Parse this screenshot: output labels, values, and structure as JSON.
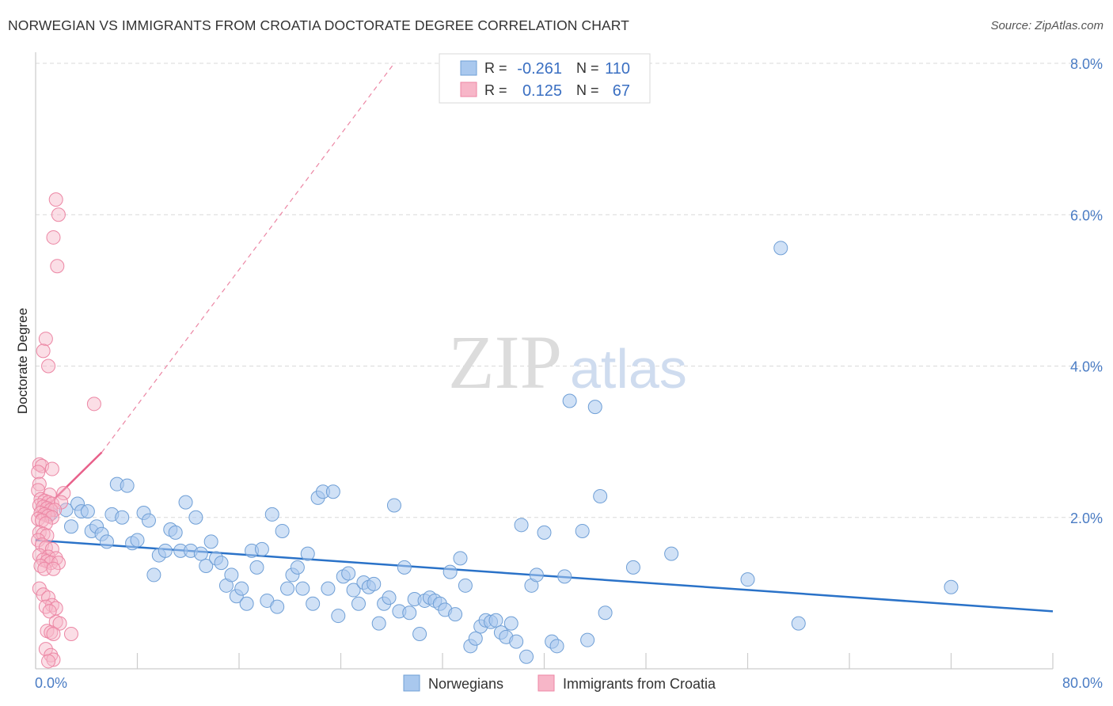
{
  "title": "NORWEGIAN VS IMMIGRANTS FROM CROATIA DOCTORATE DEGREE CORRELATION CHART",
  "source": "Source: ZipAtlas.com",
  "watermark": {
    "zip": "ZIP",
    "atlas": "atlas"
  },
  "colors": {
    "blue_fill": "#a9c8ee",
    "blue_stroke": "#6f9fd6",
    "blue_line": "#2a72c8",
    "pink_fill": "#f7b6c8",
    "pink_stroke": "#ec86a4",
    "pink_line": "#e8608a",
    "tick_label": "#4a7cc4",
    "grid": "#d9d9d9"
  },
  "stats_box": {
    "rows": [
      {
        "r_label": "R =",
        "r_value": "-0.261",
        "n_label": "N =",
        "n_value": "110",
        "series": "blue"
      },
      {
        "r_label": "R =",
        "r_value": "0.125",
        "n_label": "N =",
        "n_value": "67",
        "series": "pink"
      }
    ]
  },
  "chart_data": {
    "type": "scatter",
    "title": "NORWEGIAN VS IMMIGRANTS FROM CROATIA DOCTORATE DEGREE CORRELATION CHART",
    "xlabel": "",
    "ylabel": "Doctorate Degree",
    "xlim": [
      0,
      80
    ],
    "ylim": [
      0,
      8
    ],
    "x_tick_labels": [
      "0.0%",
      "80.0%"
    ],
    "y_ticks": [
      2,
      4,
      6,
      8
    ],
    "y_tick_labels": [
      "2.0%",
      "4.0%",
      "6.0%",
      "8.0%"
    ],
    "grid": true,
    "legend_position": "bottom-center",
    "series": [
      {
        "name": "Norwegians",
        "color": "#a9c8ee",
        "r": -0.261,
        "n": 110,
        "trend": {
          "x": [
            0,
            80
          ],
          "y": [
            1.7,
            0.76
          ]
        },
        "points": [
          [
            1.2,
            2.05
          ],
          [
            2.4,
            2.1
          ],
          [
            2.8,
            1.88
          ],
          [
            3.3,
            2.18
          ],
          [
            3.6,
            2.08
          ],
          [
            4.1,
            2.08
          ],
          [
            4.4,
            1.82
          ],
          [
            4.8,
            1.88
          ],
          [
            5.2,
            1.78
          ],
          [
            5.6,
            1.68
          ],
          [
            6.0,
            2.04
          ],
          [
            6.4,
            2.44
          ],
          [
            6.8,
            2.0
          ],
          [
            7.2,
            2.42
          ],
          [
            7.6,
            1.66
          ],
          [
            8.0,
            1.7
          ],
          [
            8.5,
            2.06
          ],
          [
            8.9,
            1.96
          ],
          [
            9.3,
            1.24
          ],
          [
            9.7,
            1.5
          ],
          [
            10.2,
            1.56
          ],
          [
            10.6,
            1.84
          ],
          [
            11.0,
            1.8
          ],
          [
            11.4,
            1.56
          ],
          [
            11.8,
            2.2
          ],
          [
            12.2,
            1.56
          ],
          [
            12.6,
            2.0
          ],
          [
            13.0,
            1.52
          ],
          [
            13.4,
            1.36
          ],
          [
            13.8,
            1.68
          ],
          [
            14.2,
            1.46
          ],
          [
            14.6,
            1.4
          ],
          [
            15.0,
            1.1
          ],
          [
            15.4,
            1.24
          ],
          [
            15.8,
            0.96
          ],
          [
            16.2,
            1.06
          ],
          [
            16.6,
            0.86
          ],
          [
            17.0,
            1.56
          ],
          [
            17.4,
            1.34
          ],
          [
            17.8,
            1.58
          ],
          [
            18.2,
            0.9
          ],
          [
            18.6,
            2.04
          ],
          [
            19.0,
            0.82
          ],
          [
            19.4,
            1.82
          ],
          [
            19.8,
            1.06
          ],
          [
            20.2,
            1.24
          ],
          [
            20.6,
            1.34
          ],
          [
            21.0,
            1.06
          ],
          [
            21.4,
            1.52
          ],
          [
            21.8,
            0.86
          ],
          [
            22.2,
            2.26
          ],
          [
            22.6,
            2.34
          ],
          [
            23.0,
            1.06
          ],
          [
            23.4,
            2.34
          ],
          [
            23.8,
            0.7
          ],
          [
            24.2,
            1.22
          ],
          [
            24.6,
            1.26
          ],
          [
            25.0,
            1.04
          ],
          [
            25.4,
            0.86
          ],
          [
            25.8,
            1.14
          ],
          [
            26.2,
            1.08
          ],
          [
            26.6,
            1.12
          ],
          [
            27.0,
            0.6
          ],
          [
            27.4,
            0.86
          ],
          [
            27.8,
            0.94
          ],
          [
            28.2,
            2.16
          ],
          [
            28.6,
            0.76
          ],
          [
            29.0,
            1.34
          ],
          [
            29.4,
            0.74
          ],
          [
            29.8,
            0.92
          ],
          [
            30.2,
            0.46
          ],
          [
            30.6,
            0.9
          ],
          [
            31.0,
            0.94
          ],
          [
            31.4,
            0.9
          ],
          [
            31.8,
            0.86
          ],
          [
            32.2,
            0.78
          ],
          [
            32.6,
            1.28
          ],
          [
            33.0,
            0.72
          ],
          [
            33.4,
            1.46
          ],
          [
            33.8,
            1.1
          ],
          [
            34.2,
            0.3
          ],
          [
            34.6,
            0.4
          ],
          [
            35.0,
            0.56
          ],
          [
            35.4,
            0.64
          ],
          [
            35.8,
            0.62
          ],
          [
            36.2,
            0.64
          ],
          [
            36.6,
            0.48
          ],
          [
            37.0,
            0.42
          ],
          [
            37.4,
            0.6
          ],
          [
            37.8,
            0.36
          ],
          [
            38.2,
            1.9
          ],
          [
            38.6,
            0.16
          ],
          [
            39.0,
            1.1
          ],
          [
            39.4,
            1.24
          ],
          [
            40.0,
            1.8
          ],
          [
            40.6,
            0.36
          ],
          [
            41.0,
            0.3
          ],
          [
            41.6,
            1.22
          ],
          [
            42.0,
            3.54
          ],
          [
            43.0,
            1.82
          ],
          [
            43.4,
            0.38
          ],
          [
            44.0,
            3.46
          ],
          [
            44.4,
            2.28
          ],
          [
            44.8,
            0.74
          ],
          [
            47.0,
            1.34
          ],
          [
            60.0,
            0.6
          ],
          [
            72.0,
            1.08
          ],
          [
            58.6,
            5.56
          ],
          [
            50.0,
            1.52
          ],
          [
            56.0,
            1.18
          ]
        ]
      },
      {
        "name": "Immigrants from Croatia",
        "color": "#f7b6c8",
        "r": 0.125,
        "n": 67,
        "trend": {
          "x": [
            0,
            5.2
          ],
          "y": [
            2.0,
            2.86
          ]
        },
        "trend_extended": {
          "x": [
            5.2,
            28.2
          ],
          "y": [
            2.86,
            8.0
          ]
        },
        "points": [
          [
            1.6,
            6.2
          ],
          [
            1.8,
            6.0
          ],
          [
            1.4,
            5.7
          ],
          [
            1.7,
            5.32
          ],
          [
            0.8,
            4.36
          ],
          [
            0.6,
            4.2
          ],
          [
            1.0,
            4.0
          ],
          [
            4.6,
            3.5
          ],
          [
            0.3,
            2.7
          ],
          [
            0.5,
            2.68
          ],
          [
            1.3,
            2.64
          ],
          [
            0.2,
            2.6
          ],
          [
            0.3,
            2.44
          ],
          [
            0.2,
            2.36
          ],
          [
            2.2,
            2.32
          ],
          [
            1.1,
            2.3
          ],
          [
            0.4,
            2.24
          ],
          [
            0.7,
            2.22
          ],
          [
            1.0,
            2.2
          ],
          [
            1.3,
            2.18
          ],
          [
            2.0,
            2.2
          ],
          [
            0.3,
            2.16
          ],
          [
            0.6,
            2.14
          ],
          [
            0.9,
            2.12
          ],
          [
            1.2,
            2.1
          ],
          [
            1.5,
            2.1
          ],
          [
            0.4,
            2.06
          ],
          [
            0.7,
            2.04
          ],
          [
            1.0,
            2.02
          ],
          [
            1.3,
            2.0
          ],
          [
            0.2,
            1.98
          ],
          [
            0.5,
            1.96
          ],
          [
            0.8,
            1.92
          ],
          [
            0.3,
            1.8
          ],
          [
            0.6,
            1.78
          ],
          [
            0.9,
            1.76
          ],
          [
            0.2,
            1.7
          ],
          [
            0.5,
            1.64
          ],
          [
            0.8,
            1.6
          ],
          [
            1.3,
            1.58
          ],
          [
            0.3,
            1.5
          ],
          [
            1.0,
            1.48
          ],
          [
            1.6,
            1.46
          ],
          [
            0.6,
            1.44
          ],
          [
            0.9,
            1.42
          ],
          [
            1.2,
            1.4
          ],
          [
            1.8,
            1.4
          ],
          [
            0.4,
            1.36
          ],
          [
            0.7,
            1.32
          ],
          [
            1.4,
            1.32
          ],
          [
            0.3,
            1.06
          ],
          [
            0.6,
            0.98
          ],
          [
            1.0,
            0.94
          ],
          [
            1.3,
            0.84
          ],
          [
            0.8,
            0.82
          ],
          [
            1.6,
            0.8
          ],
          [
            1.1,
            0.76
          ],
          [
            1.6,
            0.62
          ],
          [
            1.9,
            0.6
          ],
          [
            0.9,
            0.5
          ],
          [
            1.2,
            0.48
          ],
          [
            2.8,
            0.46
          ],
          [
            1.4,
            0.46
          ],
          [
            0.8,
            0.26
          ],
          [
            1.2,
            0.18
          ],
          [
            1.4,
            0.12
          ],
          [
            1.0,
            0.1
          ]
        ]
      }
    ]
  }
}
